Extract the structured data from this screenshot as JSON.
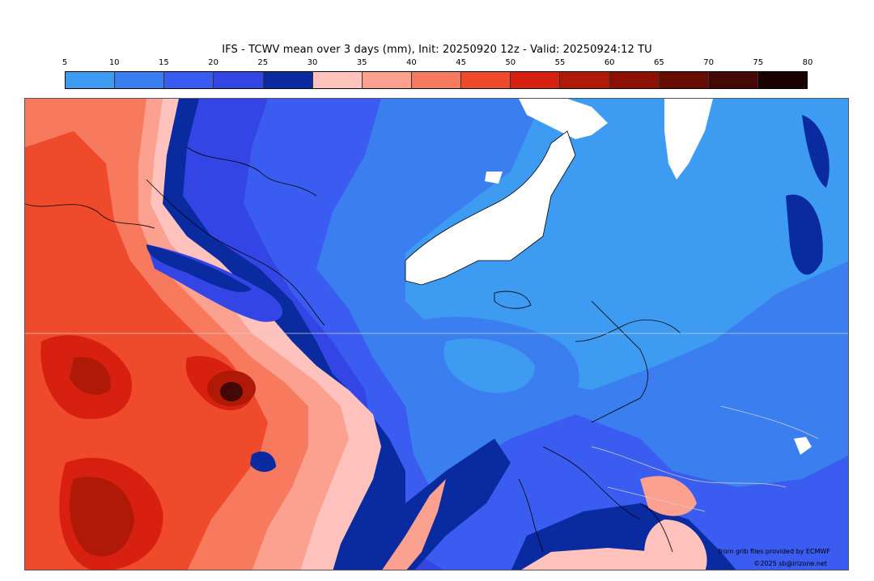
{
  "title": "IFS - TCWV mean over 3 days (mm), Init: 20250920 12z - Valid: 20250924:12 TU",
  "colorbar": {
    "ticks": [
      "5",
      "10",
      "15",
      "20",
      "25",
      "30",
      "35",
      "40",
      "45",
      "50",
      "55",
      "60",
      "65",
      "70",
      "75",
      "80"
    ],
    "colors": [
      "#3d9bf2",
      "#3b7ef0",
      "#3b5cf0",
      "#3445e6",
      "#0a2aa0",
      "#ffc2bc",
      "#fca090",
      "#f77a5e",
      "#f04a2c",
      "#d82010",
      "#b01808",
      "#8c1004",
      "#680c04",
      "#440806",
      "#1a0202"
    ]
  },
  "map": {
    "land_mask_color": "#ffffff",
    "coastline_color": "#000000",
    "border_color": "#d0d0d0"
  },
  "credits": {
    "source": "from grib files provided by ECMWF",
    "copyright": "©2025 sb@irizone.net"
  }
}
